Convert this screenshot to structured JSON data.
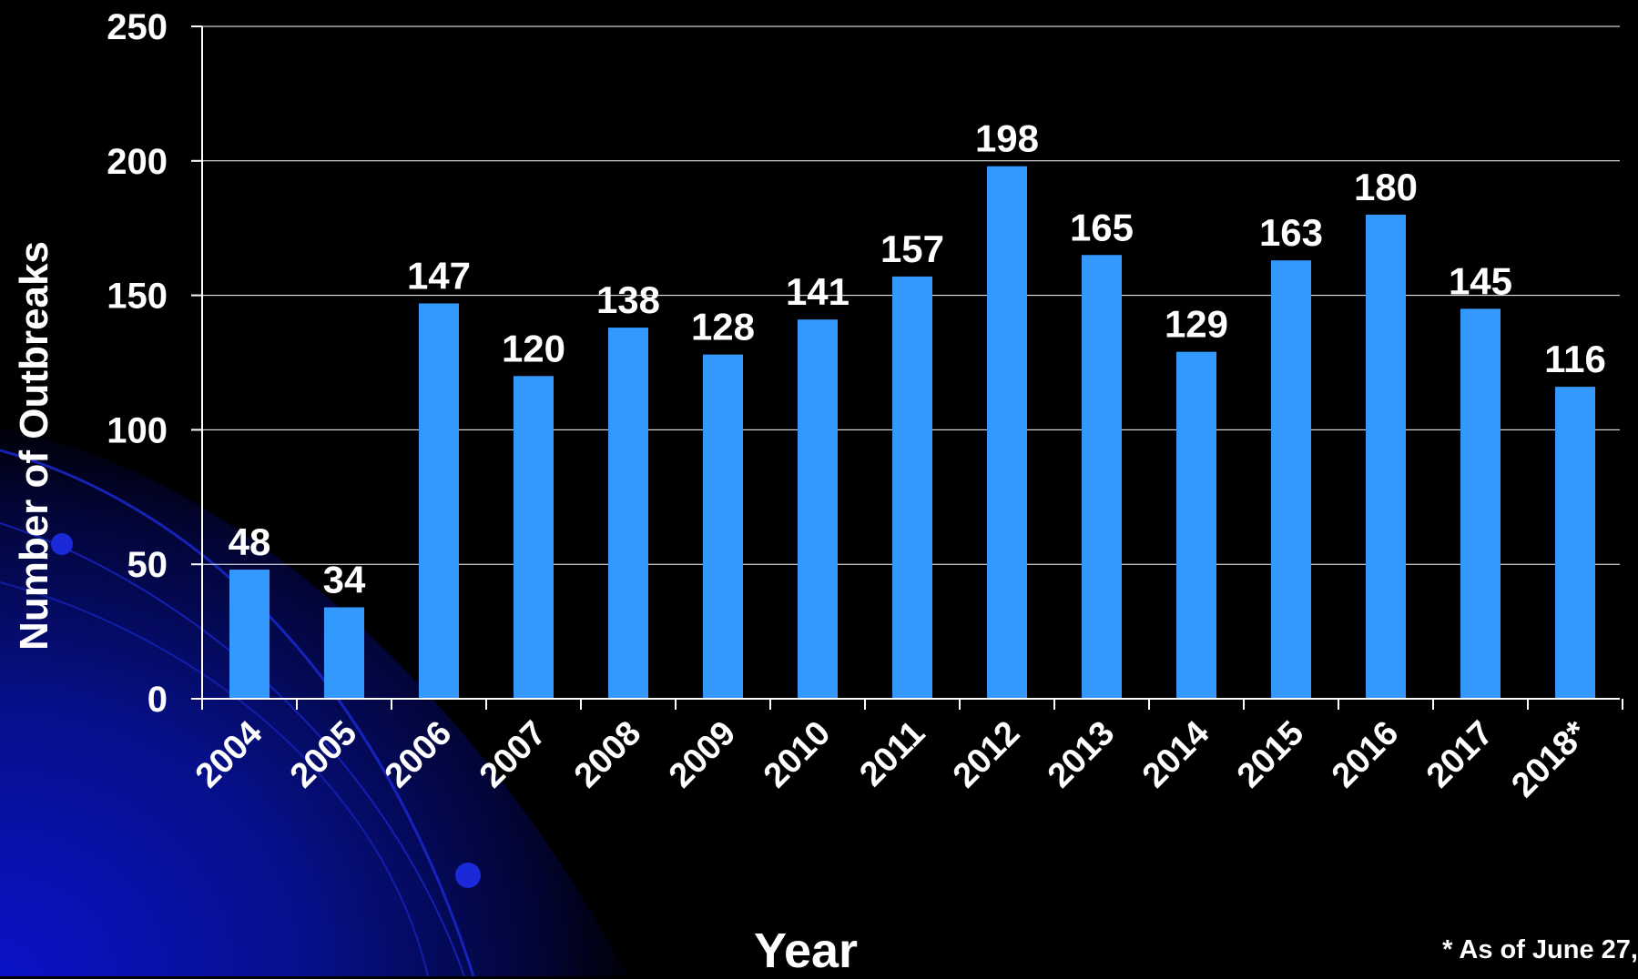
{
  "colors": {
    "background": "#000000",
    "bar": "#3399ff",
    "text": "#ffffff",
    "gridline": "#ffffff",
    "decoration_blue": "#0a10a8"
  },
  "footnote": "* As of June 27,",
  "chart_data": {
    "type": "bar",
    "categories": [
      "2004",
      "2005",
      "2006",
      "2007",
      "2008",
      "2009",
      "2010",
      "2011",
      "2012",
      "2013",
      "2014",
      "2015",
      "2016",
      "2017",
      "2018*"
    ],
    "values": [
      48,
      34,
      147,
      120,
      138,
      128,
      141,
      157,
      198,
      165,
      129,
      163,
      180,
      145,
      116
    ],
    "title": "",
    "xlabel": "Year",
    "ylabel": "Number of Outbreaks",
    "ylim": [
      0,
      250
    ],
    "yticks": [
      0,
      50,
      100,
      150,
      200,
      250
    ],
    "grid": true,
    "data_labels": true,
    "legend": "none"
  }
}
